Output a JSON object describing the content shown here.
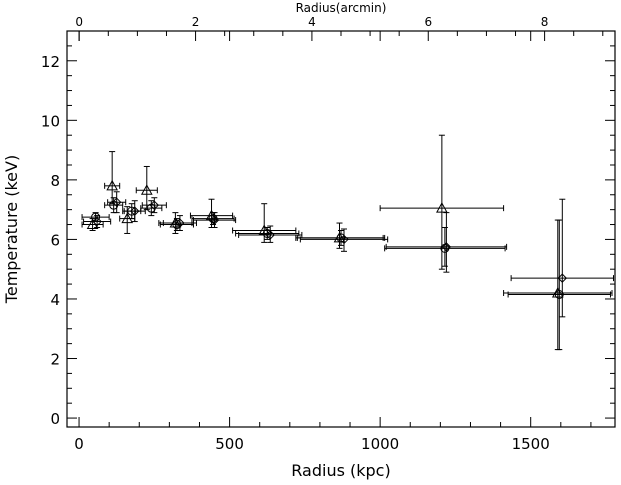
{
  "chart_data": {
    "type": "scatter",
    "title": "",
    "xlabel": "Radius (kpc)",
    "ylabel": "Temperature (keV)",
    "x2label": "Radius(arcmin)",
    "xlim": [
      -40,
      1780
    ],
    "ylim": [
      -0.3,
      13
    ],
    "x2lim": [
      -0.21,
      9.21
    ],
    "x_ticks": [
      0,
      500,
      1000,
      1500
    ],
    "y_ticks": [
      0,
      2,
      4,
      6,
      8,
      10,
      12
    ],
    "x2_ticks": [
      0,
      2,
      4,
      6,
      8
    ],
    "grid": false,
    "legend": "none",
    "series": [
      {
        "marker": "circle",
        "points": [
          {
            "x": 55,
            "xerr": 45,
            "y": 6.75,
            "ylo": 6.6,
            "yhi": 6.9
          },
          {
            "x": 115,
            "xerr": 30,
            "y": 7.15,
            "ylo": 6.9,
            "yhi": 7.4
          },
          {
            "x": 175,
            "xerr": 30,
            "y": 6.95,
            "ylo": 6.7,
            "yhi": 7.2
          },
          {
            "x": 240,
            "xerr": 35,
            "y": 7.05,
            "ylo": 6.8,
            "yhi": 7.3
          },
          {
            "x": 325,
            "xerr": 55,
            "y": 6.5,
            "ylo": 6.3,
            "yhi": 6.7
          },
          {
            "x": 445,
            "xerr": 70,
            "y": 6.7,
            "ylo": 6.5,
            "yhi": 6.9
          },
          {
            "x": 625,
            "xerr": 105,
            "y": 6.2,
            "ylo": 6.0,
            "yhi": 6.4
          },
          {
            "x": 870,
            "xerr": 145,
            "y": 6.05,
            "ylo": 5.8,
            "yhi": 6.3
          },
          {
            "x": 1215,
            "xerr": 200,
            "y": 5.7,
            "ylo": 5.1,
            "yhi": 6.4
          },
          {
            "x": 1595,
            "xerr": 170,
            "y": 4.15,
            "ylo": 2.3,
            "yhi": 6.65
          }
        ]
      },
      {
        "marker": "triangle",
        "points": [
          {
            "x": 45,
            "xerr": 35,
            "y": 6.5,
            "ylo": 6.3,
            "yhi": 6.7
          },
          {
            "x": 110,
            "xerr": 25,
            "y": 7.8,
            "ylo": 7.2,
            "yhi": 8.95
          },
          {
            "x": 160,
            "xerr": 25,
            "y": 6.7,
            "ylo": 6.2,
            "yhi": 7.1
          },
          {
            "x": 225,
            "xerr": 35,
            "y": 7.65,
            "ylo": 7.0,
            "yhi": 8.45
          },
          {
            "x": 320,
            "xerr": 55,
            "y": 6.55,
            "ylo": 6.2,
            "yhi": 6.9
          },
          {
            "x": 440,
            "xerr": 70,
            "y": 6.8,
            "ylo": 6.4,
            "yhi": 7.35
          },
          {
            "x": 615,
            "xerr": 105,
            "y": 6.3,
            "ylo": 5.9,
            "yhi": 7.2
          },
          {
            "x": 865,
            "xerr": 145,
            "y": 6.05,
            "ylo": 5.7,
            "yhi": 6.55
          },
          {
            "x": 1205,
            "xerr": 205,
            "y": 7.05,
            "ylo": 5.0,
            "yhi": 9.5
          },
          {
            "x": 1590,
            "xerr": 180,
            "y": 4.2,
            "ylo": 2.3,
            "yhi": 6.65
          }
        ]
      },
      {
        "marker": "diamond",
        "points": [
          {
            "x": 60,
            "xerr": 45,
            "y": 6.6,
            "ylo": 6.4,
            "yhi": 6.8
          },
          {
            "x": 125,
            "xerr": 30,
            "y": 7.25,
            "ylo": 6.9,
            "yhi": 7.6
          },
          {
            "x": 185,
            "xerr": 35,
            "y": 6.95,
            "ylo": 6.6,
            "yhi": 7.3
          },
          {
            "x": 250,
            "xerr": 40,
            "y": 7.15,
            "ylo": 6.9,
            "yhi": 7.4
          },
          {
            "x": 335,
            "xerr": 55,
            "y": 6.55,
            "ylo": 6.3,
            "yhi": 6.8
          },
          {
            "x": 450,
            "xerr": 70,
            "y": 6.65,
            "ylo": 6.4,
            "yhi": 6.9
          },
          {
            "x": 635,
            "xerr": 105,
            "y": 6.15,
            "ylo": 5.9,
            "yhi": 6.45
          },
          {
            "x": 880,
            "xerr": 145,
            "y": 6.0,
            "ylo": 5.6,
            "yhi": 6.35
          },
          {
            "x": 1220,
            "xerr": 200,
            "y": 5.75,
            "ylo": 4.9,
            "yhi": 6.9
          },
          {
            "x": 1605,
            "xerr": 170,
            "y": 4.7,
            "ylo": 3.4,
            "yhi": 7.35
          }
        ]
      }
    ]
  }
}
